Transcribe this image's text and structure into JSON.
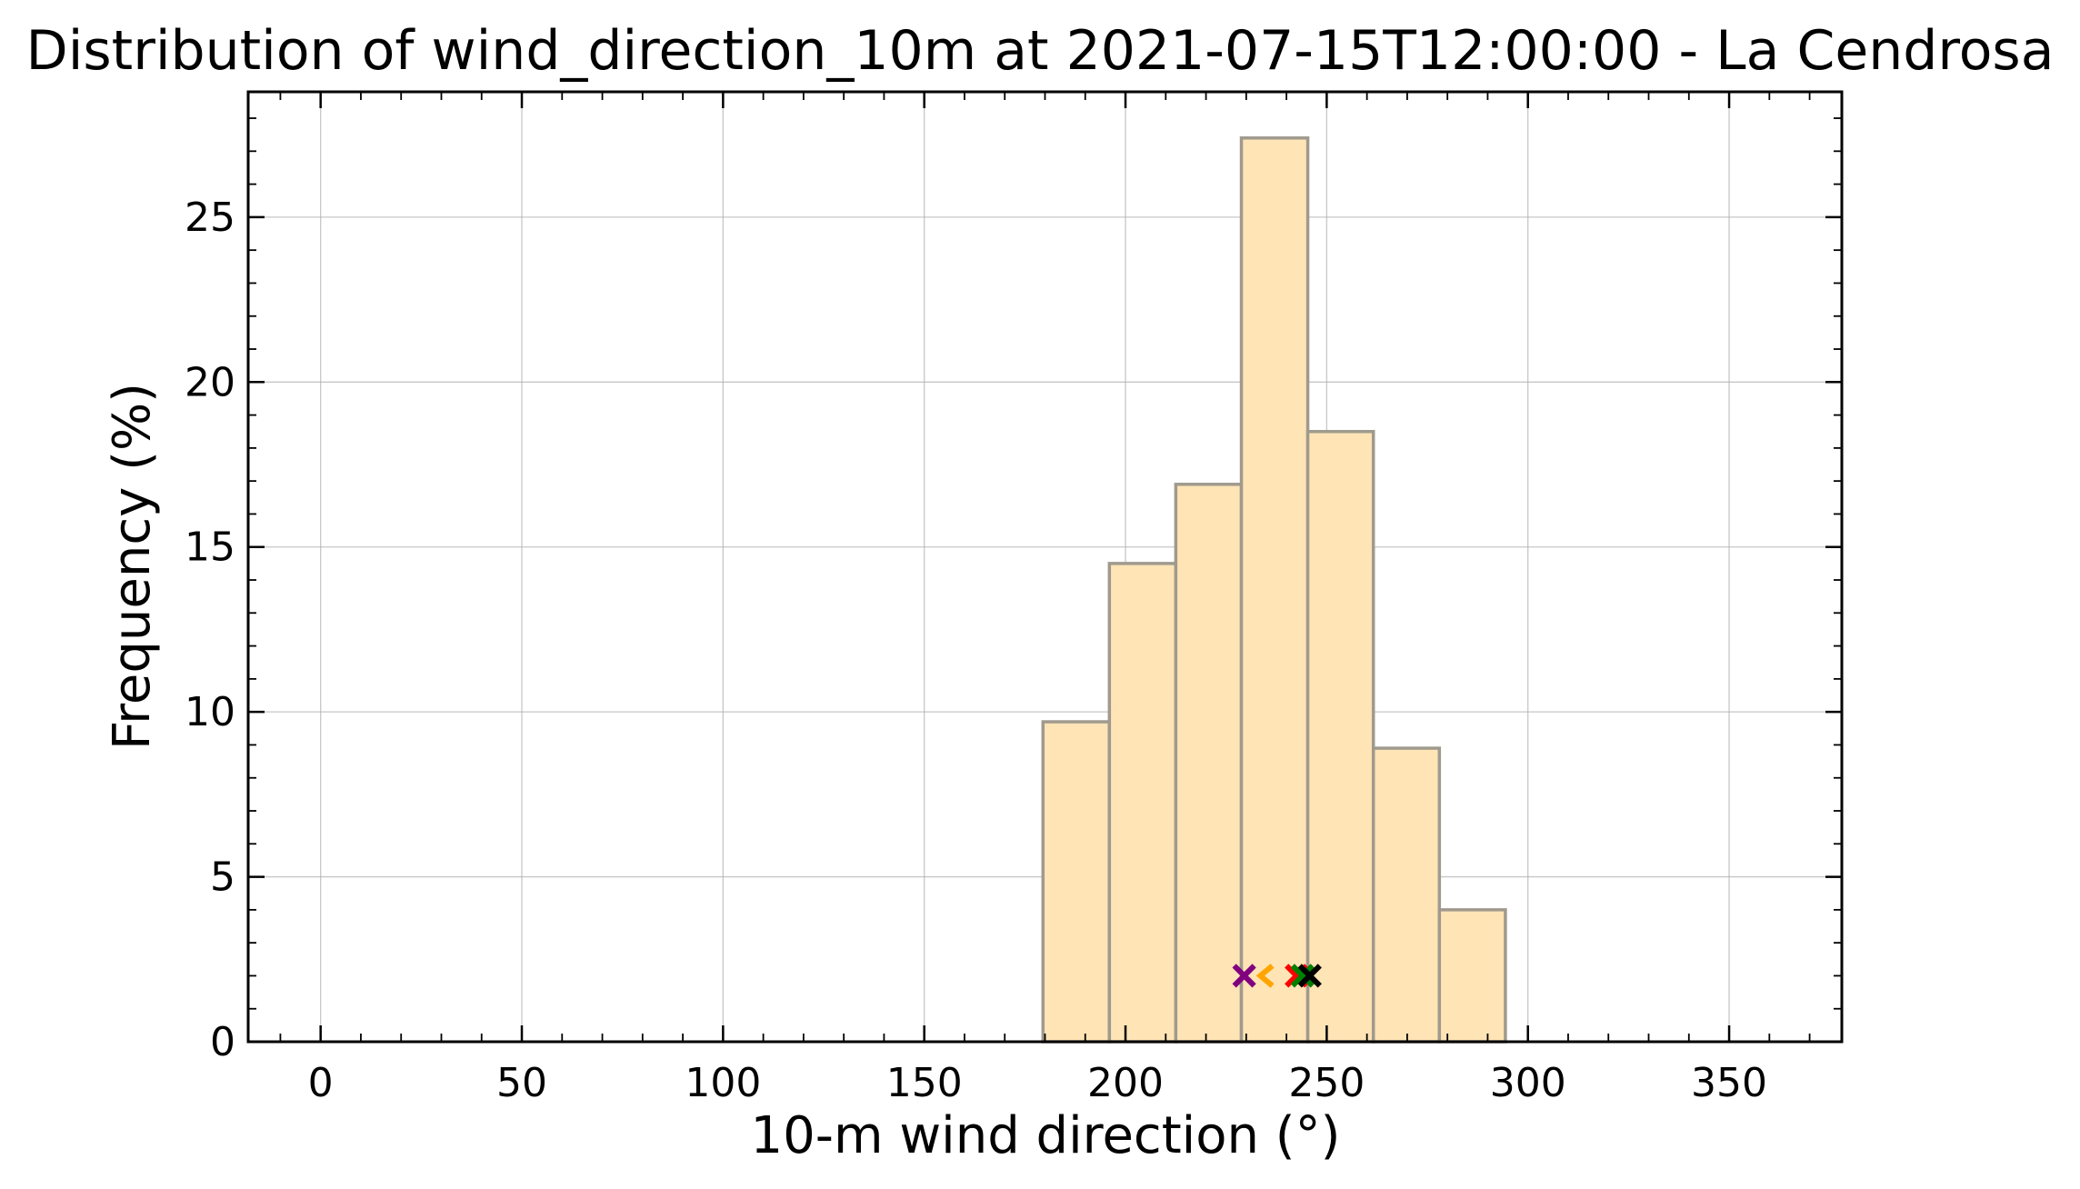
{
  "chart_data": {
    "type": "bar",
    "title": "Distribution of wind_direction_10m at 2021-07-15T12:00:00 - La Cendrosa",
    "xlabel": "10-m wind direction (°)",
    "ylabel": "Frequency (%)",
    "xlim": [
      -18,
      378
    ],
    "ylim": [
      0,
      28.8
    ],
    "xticks": [
      0,
      50,
      100,
      150,
      200,
      250,
      300,
      350
    ],
    "yticks": [
      0,
      5,
      10,
      15,
      20,
      25
    ],
    "xtick_labels": [
      "0",
      "50",
      "100",
      "150",
      "200",
      "250",
      "300",
      "350"
    ],
    "ytick_labels": [
      "0",
      "5",
      "10",
      "15",
      "20",
      "25"
    ],
    "grid": true,
    "bar_color": "#ffe4b5",
    "bar_edge_color": "#a09a8e",
    "bins": [
      {
        "x0": 179.5,
        "x1": 196.0,
        "value": 9.7
      },
      {
        "x0": 196.0,
        "x1": 212.5,
        "value": 14.5
      },
      {
        "x0": 212.5,
        "x1": 228.8,
        "value": 16.9
      },
      {
        "x0": 228.8,
        "x1": 245.3,
        "value": 27.4
      },
      {
        "x0": 245.3,
        "x1": 261.6,
        "value": 18.5
      },
      {
        "x0": 261.6,
        "x1": 278.0,
        "value": 8.9
      },
      {
        "x0": 278.0,
        "x1": 294.4,
        "value": 4.0
      }
    ],
    "markers": [
      {
        "x": 229.5,
        "y": 2.0,
        "shape": "x",
        "color": "#800080"
      },
      {
        "x": 235.0,
        "y": 2.0,
        "shape": "chevron",
        "color": "#ffa500"
      },
      {
        "x": 242.5,
        "y": 2.0,
        "shape": "x",
        "color": "#ff0000"
      },
      {
        "x": 244.0,
        "y": 2.0,
        "shape": "x",
        "color": "#008000"
      },
      {
        "x": 245.8,
        "y": 2.0,
        "shape": "x",
        "color": "#000000"
      }
    ]
  }
}
